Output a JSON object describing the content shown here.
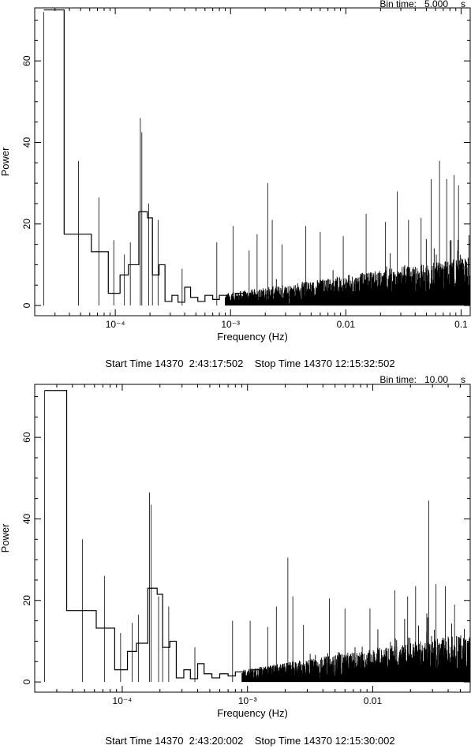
{
  "chart_data": [
    {
      "type": "line",
      "xscale": "log",
      "xlabel": "Frequency (Hz)",
      "ylabel": "Power",
      "bin_time_label": "Bin time:",
      "bin_time_value": "5.000",
      "bin_time_unit": "s",
      "footer": "Start Time 14370  2:43:17:502    Stop Time 14370 12:15:32:502",
      "xlim": [
        2e-05,
        0.12
      ],
      "ylim": [
        -2.5,
        73
      ],
      "grid": false,
      "x_ticks": [
        {
          "value": 0.0001,
          "label": "10⁻⁴"
        },
        {
          "value": 0.001,
          "label": "10⁻³"
        },
        {
          "value": 0.01,
          "label": "0.01"
        },
        {
          "value": 0.1,
          "label": "0.1"
        }
      ],
      "y_ticks": [
        0,
        20,
        40,
        60
      ],
      "series": [
        {
          "style": "step",
          "x": [
            2.4e-05,
            3.6e-05,
            6.2e-05,
            8.7e-05,
            0.00011,
            0.00013,
            0.00016,
            0.00019,
            0.00021,
            0.00024,
            0.00027,
            0.00031,
            0.00035,
            0.0004,
            0.00045,
            0.00052,
            0.0006,
            0.0007,
            0.0008,
            0.00095,
            0.0011,
            0.0013,
            0.0016,
            0.002,
            0.0025,
            0.003
          ],
          "y": [
            72.5,
            17.5,
            13.2,
            3.0,
            7.5,
            10.0,
            23.0,
            21.5,
            7.5,
            10.0,
            1.0,
            2.5,
            0.8,
            4.5,
            2.0,
            1.0,
            2.5,
            1.5,
            2.5,
            1.0,
            3.0,
            1.5,
            2.0,
            2.5,
            1.5,
            2.0
          ]
        },
        {
          "style": "spikes",
          "x": [
            2.4e-05,
            4.8e-05,
            7.2e-05,
            9.7e-05,
            0.00012,
            0.000135,
            0.000165,
            0.00017,
            0.000195,
            0.00021,
            0.000235,
            0.00038,
            0.00076,
            0.00105,
            0.00145,
            0.0017,
            0.0021,
            0.0023,
            0.0028,
            0.0045,
            0.006,
            0.0095,
            0.015,
            0.022,
            0.028,
            0.035,
            0.045,
            0.055,
            0.065,
            0.075,
            0.087,
            0.095
          ],
          "y": [
            72,
            35.5,
            26.5,
            16,
            12.5,
            15.5,
            46,
            42.5,
            25,
            20.5,
            21,
            9,
            15.5,
            19.5,
            13.5,
            17.5,
            30,
            21,
            15,
            19.5,
            18,
            17,
            22.5,
            20.5,
            28,
            21,
            21.5,
            31,
            35.5,
            31,
            32,
            29.5
          ]
        }
      ]
    },
    {
      "type": "line",
      "xscale": "log",
      "xlabel": "Frequency (Hz)",
      "ylabel": "Power",
      "bin_time_label": "Bin time:",
      "bin_time_value": "10.00",
      "bin_time_unit": "s",
      "footer": "Start Time 14370  2:43:20:002    Stop Time 14370 12:15:30:002",
      "xlim": [
        2e-05,
        0.06
      ],
      "ylim": [
        -2.5,
        73
      ],
      "grid": false,
      "x_ticks": [
        {
          "value": 0.0001,
          "label": "10⁻⁴"
        },
        {
          "value": 0.001,
          "label": "10⁻³"
        },
        {
          "value": 0.01,
          "label": "0.01"
        }
      ],
      "y_ticks": [
        0,
        20,
        40,
        60
      ],
      "series": [
        {
          "style": "step",
          "x": [
            2.4e-05,
            3.6e-05,
            6.2e-05,
            8.7e-05,
            0.00011,
            0.00013,
            0.00016,
            0.00019,
            0.00021,
            0.00024,
            0.00027,
            0.00031,
            0.00035,
            0.0004,
            0.00045,
            0.00052,
            0.0006,
            0.0007,
            0.0008,
            0.00095,
            0.0011,
            0.0013,
            0.0016,
            0.002,
            0.0025,
            0.003
          ],
          "y": [
            71.5,
            17.5,
            13.2,
            3.0,
            7.5,
            9.5,
            23.0,
            21.5,
            8.5,
            10.0,
            1.0,
            3.0,
            0.8,
            4.5,
            2.0,
            1.0,
            2.0,
            1.5,
            2.5,
            1.0,
            3.0,
            1.5,
            2.0,
            2.5,
            1.5,
            2.0
          ]
        },
        {
          "style": "spikes",
          "x": [
            2.4e-05,
            4.8e-05,
            7.2e-05,
            9.7e-05,
            0.00012,
            0.000135,
            0.000165,
            0.00017,
            0.000195,
            0.00021,
            0.000235,
            0.00038,
            0.00076,
            0.00105,
            0.00145,
            0.0017,
            0.0021,
            0.0023,
            0.0028,
            0.0045,
            0.006,
            0.0095,
            0.015,
            0.019,
            0.022,
            0.028,
            0.032,
            0.038,
            0.045
          ],
          "y": [
            71.5,
            35,
            26,
            12,
            14.5,
            16.5,
            46.5,
            43.5,
            21,
            19,
            18.5,
            8.5,
            15,
            15,
            13.5,
            18.5,
            30.5,
            21,
            14,
            20.5,
            18,
            18,
            22.5,
            21,
            23.5,
            44.5,
            24,
            23.5,
            19
          ]
        }
      ]
    }
  ]
}
